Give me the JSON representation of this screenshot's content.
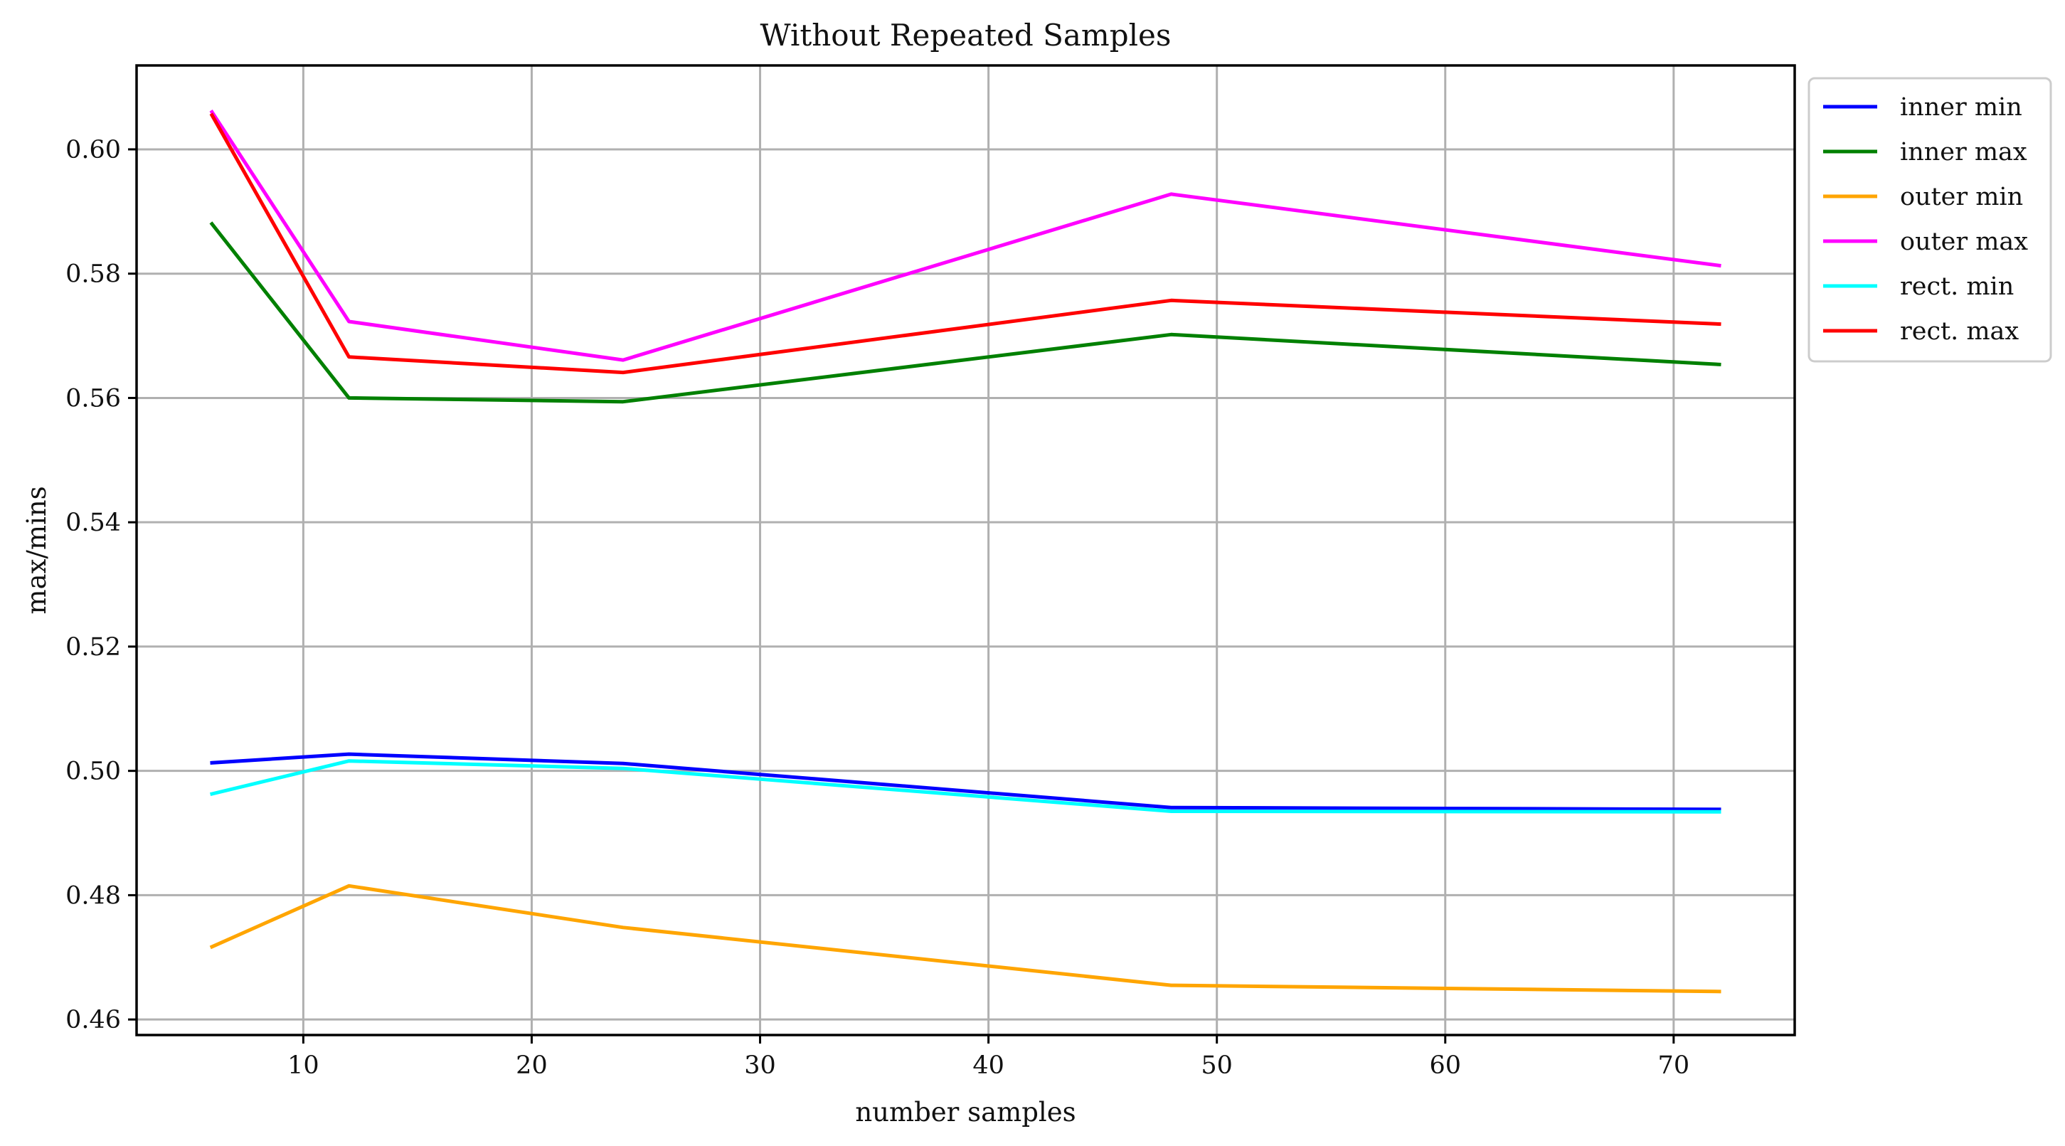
{
  "chart_data": {
    "type": "line",
    "title": "Without Repeated Samples",
    "xlabel": "number samples",
    "ylabel": "max/mins",
    "x": [
      6,
      12,
      24,
      48,
      72
    ],
    "xlim": [
      2.7,
      75.3
    ],
    "ylim": [
      0.4575,
      0.6135
    ],
    "xticks": [
      10,
      20,
      30,
      40,
      50,
      60,
      70
    ],
    "xtick_labels": [
      "10",
      "20",
      "30",
      "40",
      "50",
      "60",
      "70"
    ],
    "yticks": [
      0.46,
      0.48,
      0.5,
      0.52,
      0.54,
      0.56,
      0.58,
      0.6
    ],
    "ytick_labels": [
      "0.46",
      "0.48",
      "0.50",
      "0.52",
      "0.54",
      "0.56",
      "0.58",
      "0.60"
    ],
    "grid": true,
    "legend_position": "outside-top-right",
    "series": [
      {
        "name": "inner min",
        "color": "#0000ff",
        "values": [
          0.5013,
          0.5027,
          0.5012,
          0.4941,
          0.4938
        ]
      },
      {
        "name": "inner max",
        "color": "#008000",
        "values": [
          0.588,
          0.56,
          0.5594,
          0.5702,
          0.5654
        ]
      },
      {
        "name": "outer min",
        "color": "#ffa500",
        "values": [
          0.4717,
          0.4815,
          0.4748,
          0.4655,
          0.4645
        ]
      },
      {
        "name": "outer max",
        "color": "#ff00ff",
        "values": [
          0.606,
          0.5723,
          0.5661,
          0.5928,
          0.5813
        ]
      },
      {
        "name": "rect. min",
        "color": "#00ffff",
        "values": [
          0.4963,
          0.5016,
          0.5004,
          0.4935,
          0.4934
        ]
      },
      {
        "name": "rect. max",
        "color": "#ff0000",
        "values": [
          0.6055,
          0.5666,
          0.5641,
          0.5757,
          0.5719
        ]
      }
    ]
  }
}
